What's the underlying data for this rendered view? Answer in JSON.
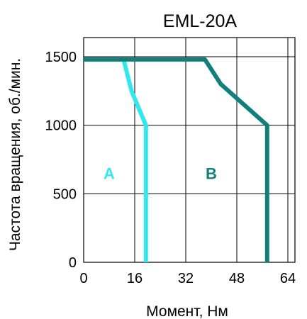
{
  "chart_data": {
    "type": "line",
    "title": "EML-20A",
    "xlabel": "Момент, Нм",
    "ylabel": "Частота вращения, об./мин.",
    "xlim": [
      0,
      64
    ],
    "ylim": [
      0,
      1500
    ],
    "x_ticks": [
      0,
      16,
      32,
      48,
      64
    ],
    "x_tick_labels": [
      "0",
      "16",
      "32",
      "48",
      "64"
    ],
    "y_ticks": [
      0,
      500,
      1000,
      1500
    ],
    "y_tick_labels": [
      "0",
      "500",
      "1000",
      "1500"
    ],
    "grid": true,
    "series": [
      {
        "name": "A",
        "color": "#33e8ec",
        "points": [
          [
            0,
            1480
          ],
          [
            12.5,
            1480
          ],
          [
            15,
            1250
          ],
          [
            19.5,
            1000
          ],
          [
            19.5,
            0
          ]
        ]
      },
      {
        "name": "B",
        "color": "#127f7d",
        "points": [
          [
            0,
            1480
          ],
          [
            38,
            1480
          ],
          [
            43,
            1300
          ],
          [
            57.5,
            1000
          ],
          [
            57.5,
            0
          ]
        ]
      }
    ],
    "annotations": [
      {
        "text": "A",
        "x": 8,
        "y": 650,
        "color": "#33e8ec"
      },
      {
        "text": "B",
        "x": 40,
        "y": 650,
        "color": "#127f7d"
      }
    ]
  }
}
